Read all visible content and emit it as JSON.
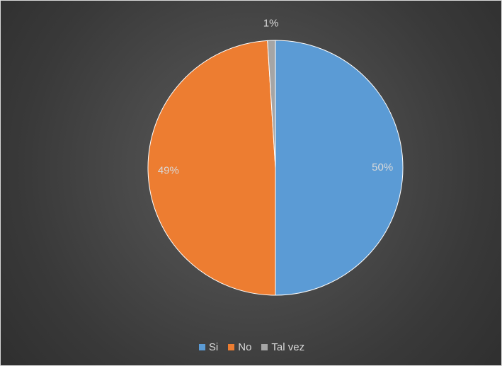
{
  "chart_data": {
    "type": "pie",
    "categories": [
      "Si",
      "No",
      "Tal vez"
    ],
    "values": [
      50,
      49,
      1
    ],
    "data_labels": [
      "50%",
      "49%",
      "1%"
    ],
    "colors": [
      "#5b9bd5",
      "#ed7d31",
      "#a5a5a5"
    ],
    "legend_position": "bottom",
    "start_angle_deg": -90,
    "direction": "clockwise"
  },
  "style": {
    "background": "#404040",
    "label_color": "#d9d9d9",
    "slice_border_color": "#ffffff"
  }
}
